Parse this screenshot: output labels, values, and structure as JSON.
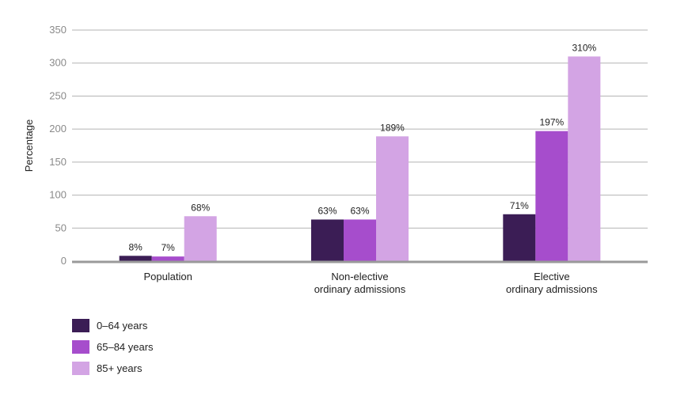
{
  "chart_data": {
    "type": "bar",
    "ylabel": "Percentage",
    "ylim": [
      0,
      350
    ],
    "yticks": [
      0,
      50,
      100,
      150,
      200,
      250,
      300,
      350
    ],
    "grid": true,
    "legend_position": "bottom-left",
    "categories": [
      [
        "Population"
      ],
      [
        "Non-elective",
        "ordinary admissions"
      ],
      [
        "Elective",
        "ordinary admissions"
      ]
    ],
    "series": [
      {
        "name": "0–64 years",
        "color": "#3b1d55",
        "values": [
          8,
          63,
          71
        ],
        "labels": [
          "8%",
          "63%",
          "71%"
        ]
      },
      {
        "name": "65–84 years",
        "color": "#a64dcc",
        "values": [
          7,
          63,
          197
        ],
        "labels": [
          "7%",
          "63%",
          "197%"
        ]
      },
      {
        "name": "85+ years",
        "color": "#d3a4e4",
        "values": [
          68,
          189,
          310
        ],
        "labels": [
          "68%",
          "189%",
          "310%"
        ]
      }
    ]
  }
}
